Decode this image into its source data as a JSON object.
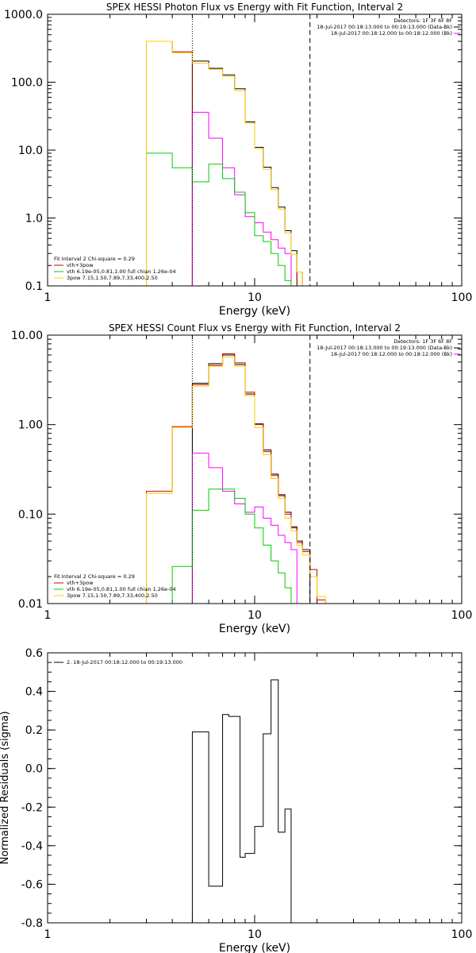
{
  "chart_data": [
    {
      "type": "line",
      "scale": "log-log",
      "step": true,
      "title": "SPEX HESSI Photon Flux vs Energy with Fit Function, Interval 2",
      "xlabel": "Energy (keV)",
      "ylabel": "",
      "xlim": [
        1,
        100
      ],
      "ylim": [
        0.1,
        1000
      ],
      "xticks": [
        "1",
        "10",
        "100"
      ],
      "yticks": [
        "0.1",
        "1.0",
        "10.0",
        "100.0",
        "1000.0"
      ],
      "vlines": [
        {
          "x": 5.0,
          "style": "dotted"
        },
        {
          "x": 18.5,
          "style": "dashed"
        }
      ],
      "header_lines": [
        "Detectors: 1F 3F 6F 8F",
        "18-Jul-2017 00:18:13.000 to 00:19:13.000 (Data-Bk)",
        "18-Jul-2017 00:18:12.000 to 00:18:12.000 (Bk)"
      ],
      "legend_lines": [
        "Fit Interval 2   Chi-square = 0.29",
        "vth+3pow",
        "vth 6.19e-05,0.81,1.00  full chian 1.26e-04",
        "3pow 7.15,1.50,7.89,7.33,400,2.50"
      ],
      "bin_edges": [
        3,
        4,
        5,
        6,
        7,
        8,
        9,
        10,
        11,
        12,
        13,
        14,
        15,
        16,
        17,
        18.5,
        20,
        22
      ],
      "series": [
        {
          "color": "#000000",
          "values": [
            null,
            null,
            205,
            160,
            128,
            80,
            26,
            11,
            5.6,
            2.8,
            1.45,
            0.65,
            0.33,
            null,
            null,
            null,
            null
          ]
        },
        {
          "color": "#cc0000",
          "values": [
            400,
            280,
            null,
            null,
            null,
            null,
            null,
            null,
            null,
            null,
            null,
            null,
            null,
            0.16,
            null,
            null,
            null
          ]
        },
        {
          "color": "#ff00ff",
          "values": [
            null,
            null,
            36,
            15,
            5.5,
            2.2,
            1.05,
            0.85,
            0.62,
            0.48,
            0.36,
            0.3,
            null,
            null,
            null,
            null,
            null
          ]
        },
        {
          "color": "#00cc00",
          "values": [
            9,
            5.5,
            3.4,
            6.2,
            3.8,
            2.4,
            1.2,
            0.55,
            0.45,
            0.3,
            0.2,
            0.12,
            null,
            null,
            null,
            null,
            null
          ]
        },
        {
          "color": "#ffcc00",
          "values": [
            400,
            270,
            190,
            155,
            122,
            75,
            25,
            10.5,
            5.2,
            2.6,
            1.35,
            0.6,
            0.29,
            0.16,
            0.1,
            null,
            null
          ]
        }
      ]
    },
    {
      "type": "line",
      "scale": "log-log",
      "step": true,
      "title": "SPEX HESSI Count Flux vs Energy with Fit Function, Interval 2",
      "xlabel": "Energy (keV)",
      "ylabel": "",
      "xlim": [
        1,
        100
      ],
      "ylim": [
        0.01,
        10
      ],
      "xticks": [
        "1",
        "10",
        "100"
      ],
      "yticks": [
        "0.01",
        "0.10",
        "1.00",
        "10.00"
      ],
      "vlines": [
        {
          "x": 5.0,
          "style": "dotted"
        },
        {
          "x": 18.5,
          "style": "dashed"
        }
      ],
      "header_lines": [
        "Detectors: 1F 3F 6F 8F",
        "18-Jul-2017 00:18:13.000 to 00:19:13.000 (Data-Bk)",
        "18-Jul-2017 00:18:12.000 to 00:18:12.000 (Bk)"
      ],
      "legend_lines": [
        "Fit Interval 2   Chi-square = 0.29",
        "vth+3pow",
        "vth 6.19e-05,0.81,1.00  full chian 1.26e-04",
        "3pow 7.15,1.50,7.89,7.33,400,2.50"
      ],
      "bin_edges": [
        3,
        4,
        5,
        6,
        7,
        8,
        9,
        10,
        11,
        12,
        13,
        14,
        15,
        16,
        17,
        18.5,
        20,
        22
      ],
      "series": [
        {
          "color": "#000000",
          "values": [
            null,
            null,
            2.9,
            4.8,
            6.0,
            4.7,
            2.2,
            1.02,
            0.52,
            0.28,
            0.165,
            0.105,
            0.072,
            0.05,
            0.04,
            null,
            null
          ]
        },
        {
          "color": "#cc0000",
          "values": [
            0.18,
            0.95,
            2.8,
            4.6,
            6.2,
            4.9,
            2.3,
            1.0,
            0.5,
            0.27,
            0.16,
            0.1,
            0.07,
            0.048,
            0.038,
            0.024,
            0.011
          ]
        },
        {
          "color": "#ff00ff",
          "values": [
            null,
            null,
            0.48,
            0.33,
            0.18,
            0.13,
            0.105,
            0.12,
            0.09,
            0.075,
            0.058,
            0.048,
            0.04,
            null,
            null,
            null,
            null
          ]
        },
        {
          "color": "#00cc00",
          "values": [
            null,
            0.026,
            0.11,
            0.19,
            0.19,
            0.15,
            0.1,
            0.07,
            0.045,
            0.03,
            0.022,
            0.015,
            0.01,
            null,
            null,
            null,
            null
          ]
        },
        {
          "color": "#ffcc00",
          "values": [
            0.17,
            0.93,
            2.7,
            4.5,
            5.7,
            4.5,
            2.1,
            0.93,
            0.46,
            0.25,
            0.15,
            0.09,
            0.065,
            0.045,
            0.035,
            0.02,
            0.012
          ]
        }
      ]
    },
    {
      "type": "line",
      "scale": "log-x",
      "step": true,
      "title": "",
      "xlabel": "Energy (keV)",
      "ylabel": "Normalized Residuals (sigma)",
      "xlim": [
        1,
        100
      ],
      "ylim": [
        -0.8,
        0.6
      ],
      "xticks": [
        "1",
        "10",
        "100"
      ],
      "yticks": [
        "-0.8",
        "-0.6",
        "-0.4",
        "-0.2",
        "0.0",
        "0.2",
        "0.4",
        "0.6"
      ],
      "legend_lines": [
        "2. 18-Jul-2017 00:18:12.000 to 00:19:13.000"
      ],
      "bin_edges": [
        5,
        6,
        7,
        7.5,
        8.5,
        9,
        10,
        11,
        12,
        13,
        14,
        15,
        16,
        18.5
      ],
      "series": [
        {
          "color": "#000000",
          "values": [
            0.19,
            -0.61,
            0.28,
            0.27,
            -0.46,
            -0.44,
            -0.3,
            0.18,
            0.46,
            -0.33,
            -0.21,
            null,
            null
          ]
        }
      ]
    }
  ]
}
